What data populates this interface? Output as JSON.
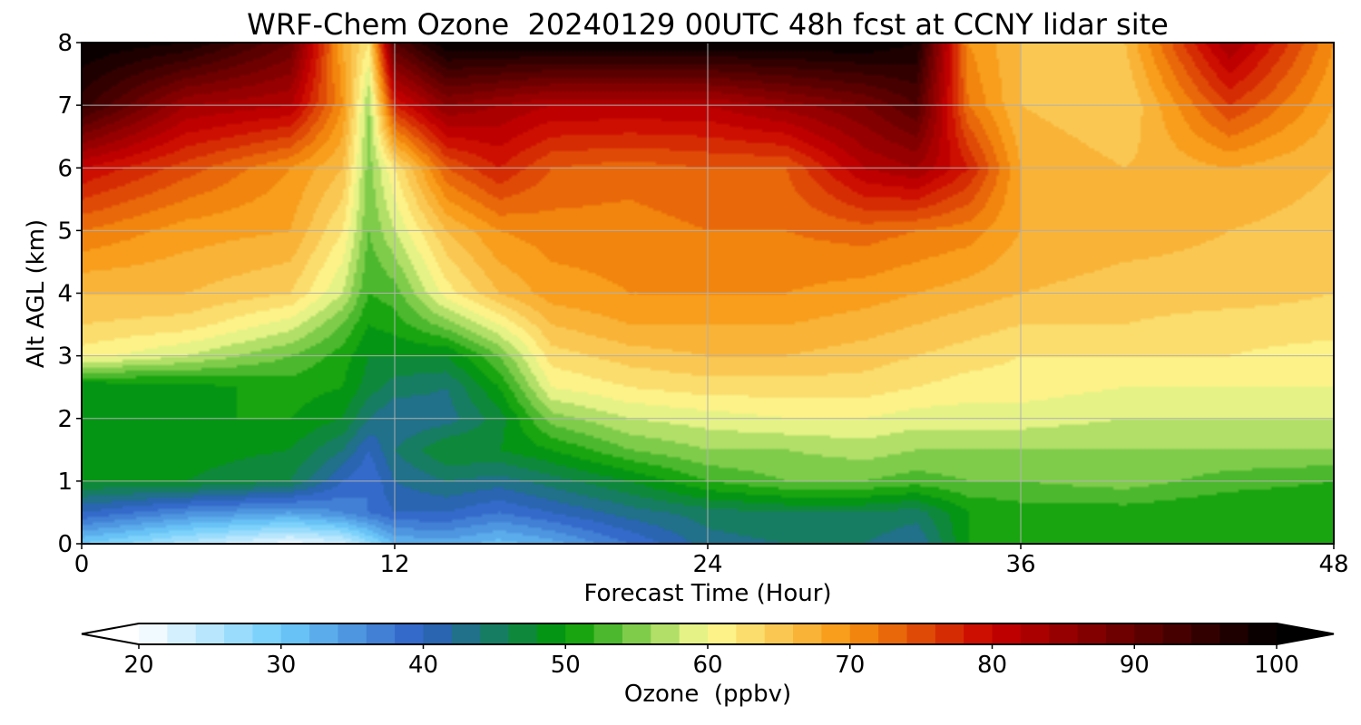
{
  "chart_data": {
    "type": "heatmap",
    "title": "WRF-Chem Ozone  20240129 00UTC 48h fcst at CCNY lidar site",
    "xlabel": "Forecast Time (Hour)",
    "ylabel": "Alt AGL (km)",
    "xlim": [
      0,
      48
    ],
    "ylim": [
      0,
      8
    ],
    "xticks": [
      "0",
      "12",
      "24",
      "36",
      "48"
    ],
    "yticks": [
      "0",
      "1",
      "2",
      "3",
      "4",
      "5",
      "6",
      "7",
      "8"
    ],
    "grid": true,
    "x_hours": [
      0,
      4,
      8,
      10,
      11,
      12,
      14,
      16,
      18,
      21,
      24,
      27,
      30,
      32,
      34,
      36,
      40,
      44,
      48
    ],
    "y_km": [
      0,
      0.5,
      1,
      1.5,
      2,
      2.5,
      3,
      3.5,
      4,
      5,
      6,
      7,
      8
    ],
    "ozone_ppbv": [
      [
        30,
        25,
        21,
        23,
        27,
        32,
        33,
        31,
        33,
        38,
        43,
        44,
        44,
        42,
        50,
        50,
        50,
        50,
        50
      ],
      [
        40,
        36,
        34,
        36,
        38,
        40,
        40,
        38,
        40,
        43,
        45,
        46,
        46,
        45,
        50,
        51,
        51,
        50,
        50
      ],
      [
        48,
        48,
        46,
        40,
        38,
        42,
        44,
        43,
        45,
        48,
        52,
        54,
        54,
        53,
        54,
        54,
        55,
        53,
        52
      ],
      [
        50,
        49,
        48,
        44,
        40,
        44,
        48,
        48,
        50,
        54,
        56,
        56,
        57,
        56,
        56,
        56,
        56,
        56,
        56
      ],
      [
        50,
        50,
        50,
        48,
        44,
        42,
        43,
        47,
        55,
        58,
        59,
        60,
        60,
        59,
        59,
        59,
        58,
        58,
        58
      ],
      [
        48,
        49,
        51,
        50,
        47,
        45,
        44,
        50,
        60,
        62,
        63,
        63,
        63,
        62,
        61,
        61,
        60,
        60,
        60
      ],
      [
        61,
        58,
        54,
        51,
        48,
        48,
        48,
        54,
        63,
        65,
        66,
        66,
        65,
        64,
        63,
        62,
        62,
        62,
        61
      ],
      [
        64,
        63,
        59,
        54,
        50,
        51,
        55,
        60,
        66,
        68,
        68,
        68,
        67,
        66,
        65,
        64,
        64,
        63,
        63
      ],
      [
        66,
        66,
        64,
        58,
        52,
        53,
        61,
        66,
        69,
        70,
        70,
        70,
        69,
        68,
        67,
        66,
        65,
        65,
        64
      ],
      [
        72,
        69,
        68,
        62,
        54,
        58,
        66,
        70,
        71,
        71,
        72,
        72,
        73,
        72,
        71,
        68,
        67,
        66,
        65
      ],
      [
        80,
        75,
        70,
        66,
        55,
        62,
        74,
        78,
        74,
        73,
        74,
        74,
        82,
        84,
        78,
        68,
        66,
        68,
        66
      ],
      [
        95,
        84,
        82,
        70,
        56,
        78,
        86,
        84,
        82,
        82,
        82,
        85,
        88,
        92,
        72,
        66,
        64,
        76,
        68
      ],
      [
        100,
        98,
        90,
        68,
        62,
        92,
        100,
        100,
        100,
        100,
        100,
        100,
        100,
        98,
        70,
        66,
        66,
        84,
        70
      ]
    ],
    "colorbar": {
      "label": "Ozone  (ppbv)",
      "min": 20,
      "max": 100,
      "step": 2,
      "extend": "both",
      "ticks": [
        "20",
        "30",
        "40",
        "50",
        "60",
        "70",
        "80",
        "90",
        "100"
      ],
      "colors": [
        {
          "value": 20,
          "color": "#ffffff"
        },
        {
          "value": 30,
          "color": "#6ecdfb"
        },
        {
          "value": 40,
          "color": "#2e5fc4"
        },
        {
          "value": 50,
          "color": "#009b00"
        },
        {
          "value": 60,
          "color": "#fdfc95"
        },
        {
          "value": 70,
          "color": "#f7940e"
        },
        {
          "value": 80,
          "color": "#c80000"
        },
        {
          "value": 90,
          "color": "#650000"
        },
        {
          "value": 100,
          "color": "#000000"
        }
      ]
    }
  }
}
